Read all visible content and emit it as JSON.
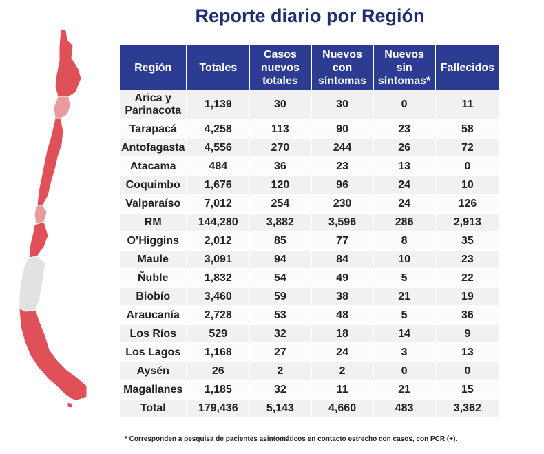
{
  "title": "Reporte diario por Región",
  "headers": [
    "Región",
    "Totales",
    "Casos nuevos totales",
    "Nuevos con síntomas",
    "Nuevos sin síntomas*",
    "Fallecidos"
  ],
  "rows": [
    [
      "Arica y Parinacota",
      "1,139",
      "30",
      "30",
      "0",
      "11"
    ],
    [
      "Tarapacá",
      "4,258",
      "113",
      "90",
      "23",
      "58"
    ],
    [
      "Antofagasta",
      "4,556",
      "270",
      "244",
      "26",
      "72"
    ],
    [
      "Atacama",
      "484",
      "36",
      "23",
      "13",
      "0"
    ],
    [
      "Coquimbo",
      "1,676",
      "120",
      "96",
      "24",
      "10"
    ],
    [
      "Valparaíso",
      "7,012",
      "254",
      "230",
      "24",
      "126"
    ],
    [
      "RM",
      "144,280",
      "3,882",
      "3,596",
      "286",
      "2,913"
    ],
    [
      "O’Higgins",
      "2,012",
      "85",
      "77",
      "8",
      "35"
    ],
    [
      "Maule",
      "3,091",
      "94",
      "84",
      "10",
      "23"
    ],
    [
      "Ñuble",
      "1,832",
      "54",
      "49",
      "5",
      "22"
    ],
    [
      "Biobío",
      "3,460",
      "59",
      "38",
      "21",
      "19"
    ],
    [
      "Araucanía",
      "2,728",
      "53",
      "48",
      "5",
      "36"
    ],
    [
      "Los Ríos",
      "529",
      "32",
      "18",
      "14",
      "9"
    ],
    [
      "Los Lagos",
      "1,168",
      "27",
      "24",
      "3",
      "13"
    ],
    [
      "Aysén",
      "26",
      "2",
      "2",
      "0",
      "0"
    ],
    [
      "Magallanes",
      "1,185",
      "32",
      "11",
      "21",
      "15"
    ]
  ],
  "total": [
    "Total",
    "179,436",
    "5,143",
    "4,660",
    "483",
    "3,362"
  ],
  "footnote": "* Corresponden a pesquisa de pacientes asintomáticos en contacto estrecho con casos, con PCR (+).",
  "map_colors": {
    "high": "#e05058",
    "medium": "#e89a9c",
    "none": "#e2e2e2"
  }
}
